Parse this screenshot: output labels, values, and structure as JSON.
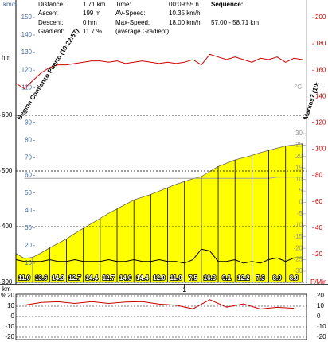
{
  "info": {
    "distance_label": "Distance:",
    "distance": "1.71 km",
    "time_label": "Time:",
    "time": "00:09:55 h",
    "sequence_label": "Sequence:",
    "ascent_label": "Ascent",
    "ascent": "199 m",
    "avspeed_label": "AV-Speed:",
    "avspeed": "10.35 km/h",
    "descent_label": "Descent:",
    "descent": "0 hm",
    "maxspeed_label": "Max-Speed:",
    "maxspeed": "18.00 km/h",
    "sequence": "57.00 - 58.71 km",
    "gradient_label": "Gradient:",
    "gradient": "11.7 %",
    "gradient_note": "(average Gradient)"
  },
  "chart_data": [
    {
      "type": "line",
      "xlabel": "km",
      "xlim": [
        0,
        1.71
      ],
      "xticks": [
        1
      ],
      "ylabel": "hm",
      "ylim": [
        300,
        600
      ],
      "yticks": [
        300,
        400,
        500,
        600
      ],
      "y2label": "P/Min",
      "y2lim": [
        0,
        200
      ],
      "y2ticks": [
        20,
        40,
        60,
        80,
        100,
        120,
        140,
        160,
        180,
        200
      ],
      "y3label": "km/h",
      "y3lim": [
        0,
        150
      ],
      "y3ticks": [
        10,
        20,
        30,
        40,
        50,
        60,
        70,
        80,
        90,
        110,
        120,
        130,
        140,
        150
      ],
      "y4label": "°C",
      "y4lim": [
        -30,
        30
      ],
      "y4ticks": [
        -30,
        -25,
        -20,
        -15,
        -10,
        -5,
        0,
        5,
        10,
        15,
        20,
        25,
        30
      ],
      "grid": true,
      "x": [
        0,
        0.05,
        0.1,
        0.15,
        0.2,
        0.25,
        0.3,
        0.35,
        0.4,
        0.45,
        0.5,
        0.55,
        0.6,
        0.65,
        0.7,
        0.75,
        0.8,
        0.85,
        0.9,
        0.95,
        1,
        1.05,
        1.1,
        1.15,
        1.2,
        1.25,
        1.3,
        1.35,
        1.4,
        1.45,
        1.5,
        1.55,
        1.6,
        1.65,
        1.7
      ],
      "series": [
        {
          "type": "area",
          "axis": "y",
          "color": "#ffff00",
          "values": [
            352,
            343,
            345,
            353,
            362,
            370,
            378,
            388,
            397,
            406,
            415,
            424,
            432,
            440,
            448,
            453,
            458,
            464,
            470,
            476,
            481,
            486,
            490,
            499,
            508,
            514,
            520,
            524,
            528,
            533,
            537,
            541,
            545,
            547,
            549
          ]
        },
        {
          "type": "line",
          "axis": "y4",
          "color": "#a0a0a0",
          "values": [
            null,
            10.5,
            10.5,
            10.5,
            10.5,
            10.5,
            10.5,
            10.5,
            10.5,
            10.5,
            10.5,
            10.5,
            10.5,
            10.5,
            10.5,
            10.5,
            10.5,
            10.5,
            10.5,
            10.5,
            10.5,
            10.5,
            10.5,
            10.5,
            10.5,
            10.5,
            10.5,
            10.5,
            10.5,
            10.5,
            10.5,
            11,
            11,
            11,
            11
          ]
        },
        {
          "type": "line",
          "axis": "y2",
          "color": "#cc0000",
          "values": [
            150,
            146,
            152,
            158,
            162,
            164,
            164,
            165,
            166,
            167,
            167,
            166,
            167,
            165,
            166,
            167,
            166,
            165,
            166,
            165,
            166,
            168,
            164,
            172,
            170,
            168,
            170,
            168,
            166,
            169,
            168,
            170,
            166,
            169,
            168
          ]
        },
        {
          "type": "line",
          "axis": "y3",
          "color": "#000000",
          "values": [
            12,
            11,
            11,
            11,
            12,
            11,
            11,
            12,
            11,
            11,
            11,
            12,
            11,
            11,
            12,
            11,
            11,
            12,
            11,
            11,
            10,
            12,
            18,
            17,
            11,
            11,
            12,
            10,
            11,
            10,
            12,
            13,
            11,
            13,
            13
          ]
        }
      ],
      "segments": {
        "bins": [
          0,
          0.1,
          0.2,
          0.3,
          0.4,
          0.5,
          0.6,
          0.7,
          0.8,
          0.9,
          1,
          1.1,
          1.2,
          1.3,
          1.4,
          1.5,
          1.6,
          1.7
        ],
        "values": [
          11.0,
          13.6,
          14.3,
          12.7,
          14.4,
          12.7,
          14.0,
          14.4,
          12.0,
          11.0,
          7.5,
          16.3,
          9.1,
          12.2,
          7.3,
          8.9,
          8.0
        ],
        "value_labels": [
          "11.0",
          "13.6",
          "14.3",
          "12.7",
          "14.4",
          "12.7",
          "14.0",
          "14.4",
          "12.0",
          "11.0",
          "7.5",
          "16.3",
          "9.1",
          "12.2",
          "7.3",
          "8.9",
          "8.0"
        ]
      },
      "annotations": [
        "Beginn Comienzo Puerto (10:22:57)",
        "Markus7 (10:"
      ]
    },
    {
      "type": "line",
      "ylabel": "%",
      "ylim": [
        -20,
        20
      ],
      "yticks": [
        -20,
        -10,
        0,
        10,
        20
      ],
      "xlim": [
        0,
        1.71
      ],
      "grid": true,
      "color": "#cc0000",
      "x": [
        0.05,
        0.15,
        0.25,
        0.35,
        0.45,
        0.55,
        0.65,
        0.75,
        0.85,
        0.95,
        1.05,
        1.15,
        1.25,
        1.35,
        1.45,
        1.55,
        1.65
      ],
      "values": [
        11.0,
        13.6,
        14.3,
        12.7,
        14.4,
        12.7,
        14.0,
        14.4,
        12.0,
        11.0,
        7.5,
        16.3,
        9.1,
        12.2,
        7.3,
        8.9,
        8.0
      ]
    }
  ]
}
